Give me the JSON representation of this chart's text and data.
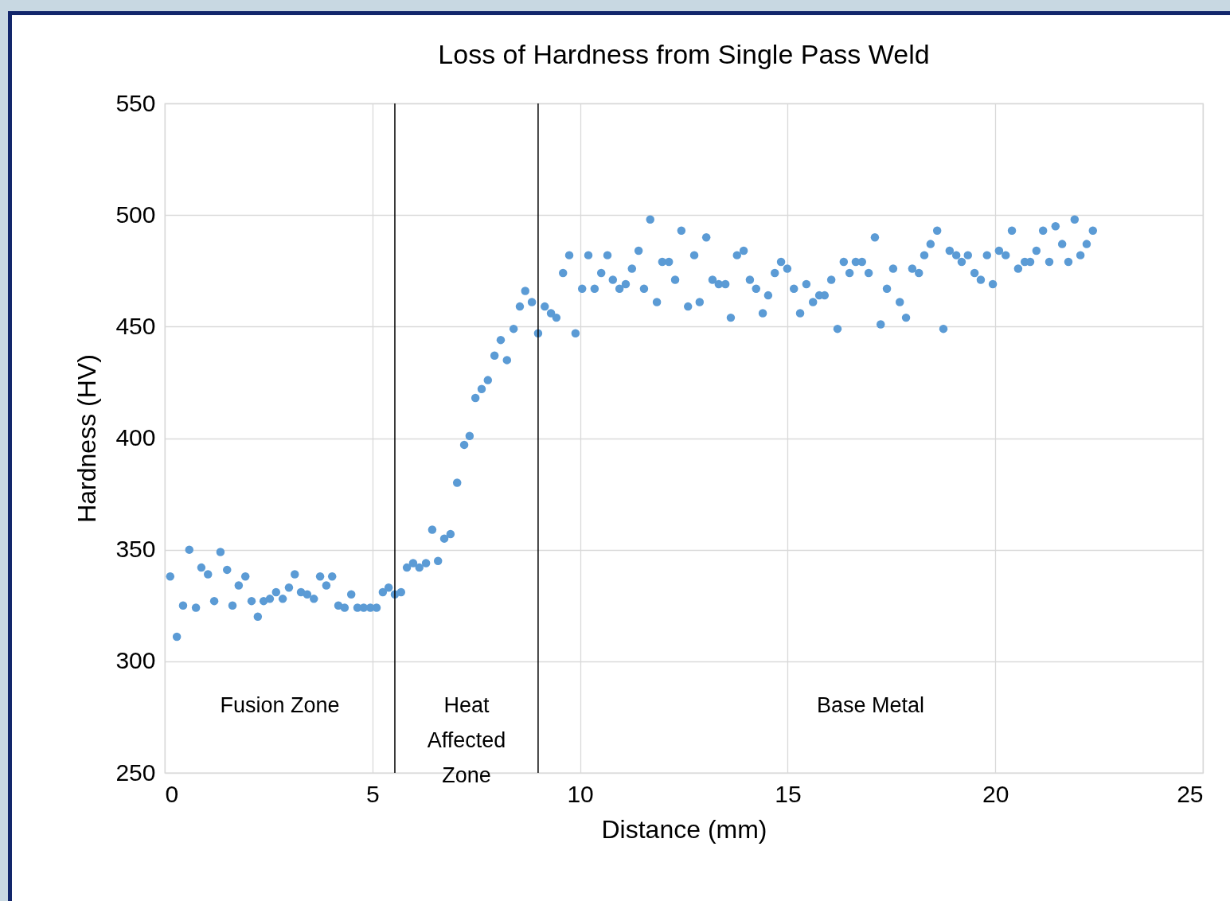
{
  "chart_data": {
    "type": "scatter",
    "title": "Loss of Hardness from Single Pass Weld",
    "xlabel": "Distance (mm)",
    "ylabel": "Hardness (HV)",
    "xlim": [
      0,
      25
    ],
    "xticks": [
      0,
      5,
      10,
      15,
      20,
      25
    ],
    "ylim": [
      250,
      550
    ],
    "yticks": [
      250,
      300,
      350,
      400,
      450,
      500,
      550
    ],
    "grid": true,
    "marker": "circle",
    "series": [
      {
        "color": "#5b9bd5",
        "x": [
          0.13,
          0.29,
          0.44,
          0.59,
          0.75,
          0.88,
          1.04,
          1.19,
          1.34,
          1.5,
          1.63,
          1.78,
          1.94,
          2.09,
          2.24,
          2.38,
          2.53,
          2.68,
          2.84,
          2.99,
          3.13,
          3.28,
          3.43,
          3.59,
          3.74,
          3.89,
          4.03,
          4.18,
          4.33,
          4.49,
          4.64,
          4.79,
          4.95,
          5.1,
          5.25,
          5.39,
          5.54,
          5.69,
          5.83,
          5.98,
          6.13,
          6.29,
          6.44,
          6.58,
          6.73,
          6.88,
          7.04,
          7.21,
          7.34,
          7.48,
          7.63,
          7.78,
          7.94,
          8.09,
          8.24,
          8.4,
          8.55,
          8.68,
          8.84,
          8.99,
          9.15,
          9.3,
          9.43,
          9.59,
          9.74,
          9.89,
          10.05,
          10.2,
          10.35,
          10.51,
          10.66,
          10.79,
          10.95,
          11.1,
          11.25,
          11.41,
          11.54,
          11.69,
          11.85,
          11.98,
          12.14,
          12.29,
          12.44,
          12.6,
          12.75,
          12.88,
          13.04,
          13.19,
          13.34,
          13.5,
          13.63,
          13.78,
          13.94,
          14.09,
          14.24,
          14.4,
          14.53,
          14.69,
          14.84,
          14.99,
          15.15,
          15.3,
          15.45,
          15.61,
          15.76,
          15.89,
          16.05,
          16.2,
          16.35,
          16.49,
          16.64,
          16.79,
          16.95,
          17.1,
          17.24,
          17.39,
          17.54,
          17.7,
          17.85,
          18,
          18.16,
          18.29,
          18.44,
          18.6,
          18.75,
          18.9,
          19.06,
          19.19,
          19.34,
          19.5,
          19.65,
          19.8,
          19.94,
          20.09,
          20.25,
          20.4,
          20.55,
          20.71,
          20.84,
          20.99,
          21.15,
          21.3,
          21.45,
          21.61,
          21.76,
          21.91,
          22.05,
          22.2,
          22.35
        ],
        "values": [
          338,
          311,
          325,
          350,
          324,
          342,
          339,
          327,
          349,
          341,
          325,
          334,
          338,
          327,
          320,
          327,
          328,
          331,
          328,
          333,
          339,
          331,
          330,
          328,
          338,
          334,
          338,
          325,
          324,
          330,
          324,
          324,
          324,
          324,
          331,
          333,
          330,
          331,
          342,
          344,
          342,
          344,
          359,
          345,
          355,
          357,
          380,
          397,
          401,
          418,
          422,
          426,
          437,
          444,
          435,
          449,
          459,
          466,
          461,
          447,
          459,
          456,
          454,
          474,
          482,
          447,
          467,
          482,
          467,
          474,
          482,
          471,
          467,
          469,
          476,
          484,
          467,
          498,
          461,
          479,
          479,
          471,
          493,
          459,
          482,
          461,
          490,
          471,
          469,
          469,
          454,
          482,
          484,
          471,
          467,
          456,
          464,
          474,
          479,
          476,
          467,
          456,
          469,
          461,
          464,
          464,
          471,
          449,
          479,
          474,
          479,
          479,
          474,
          490,
          451,
          467,
          476,
          461,
          454,
          476,
          474,
          482,
          487,
          493,
          449,
          484,
          482,
          479,
          482,
          474,
          471,
          482,
          469,
          484,
          482,
          493,
          476,
          479,
          479,
          484,
          493,
          479,
          495,
          487,
          479,
          498,
          482,
          487,
          493
        ]
      }
    ],
    "ref_lines": [
      {
        "axis": "x",
        "value": 5.54,
        "color": "#000000"
      },
      {
        "axis": "x",
        "value": 8.99,
        "color": "#000000"
      }
    ],
    "annotations": [
      "Fusion Zone",
      "Heat Affected Zone",
      "Base Metal"
    ]
  }
}
